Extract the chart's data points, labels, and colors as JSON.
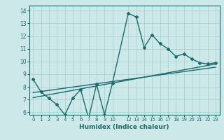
{
  "xlabel": "Humidex (Indice chaleur)",
  "xlim": [
    -0.5,
    23.5
  ],
  "ylim": [
    5.8,
    14.4
  ],
  "xticks": [
    0,
    1,
    2,
    3,
    4,
    5,
    6,
    7,
    8,
    9,
    10,
    12,
    13,
    14,
    15,
    16,
    17,
    18,
    19,
    20,
    21,
    22,
    23
  ],
  "yticks": [
    6,
    7,
    8,
    9,
    10,
    11,
    12,
    13,
    14
  ],
  "bg_color": "#cde8e8",
  "line_color": "#1a6b6b",
  "grid_color": "#a8cccc",
  "curve1_x": [
    0,
    1,
    2,
    3,
    4,
    5,
    6,
    7,
    8,
    9,
    10,
    12,
    13,
    14,
    15,
    16,
    17,
    18,
    19,
    20,
    21,
    22,
    23
  ],
  "curve1_y": [
    8.6,
    7.6,
    7.1,
    6.6,
    5.8,
    7.1,
    7.8,
    5.5,
    8.2,
    5.8,
    8.3,
    13.8,
    13.5,
    11.1,
    12.1,
    11.4,
    11.0,
    10.4,
    10.6,
    10.2,
    9.9,
    9.8,
    9.9
  ],
  "line2_x": [
    0,
    23
  ],
  "line2_y": [
    7.55,
    9.55
  ],
  "line3_x": [
    0,
    23
  ],
  "line3_y": [
    7.15,
    9.8
  ]
}
